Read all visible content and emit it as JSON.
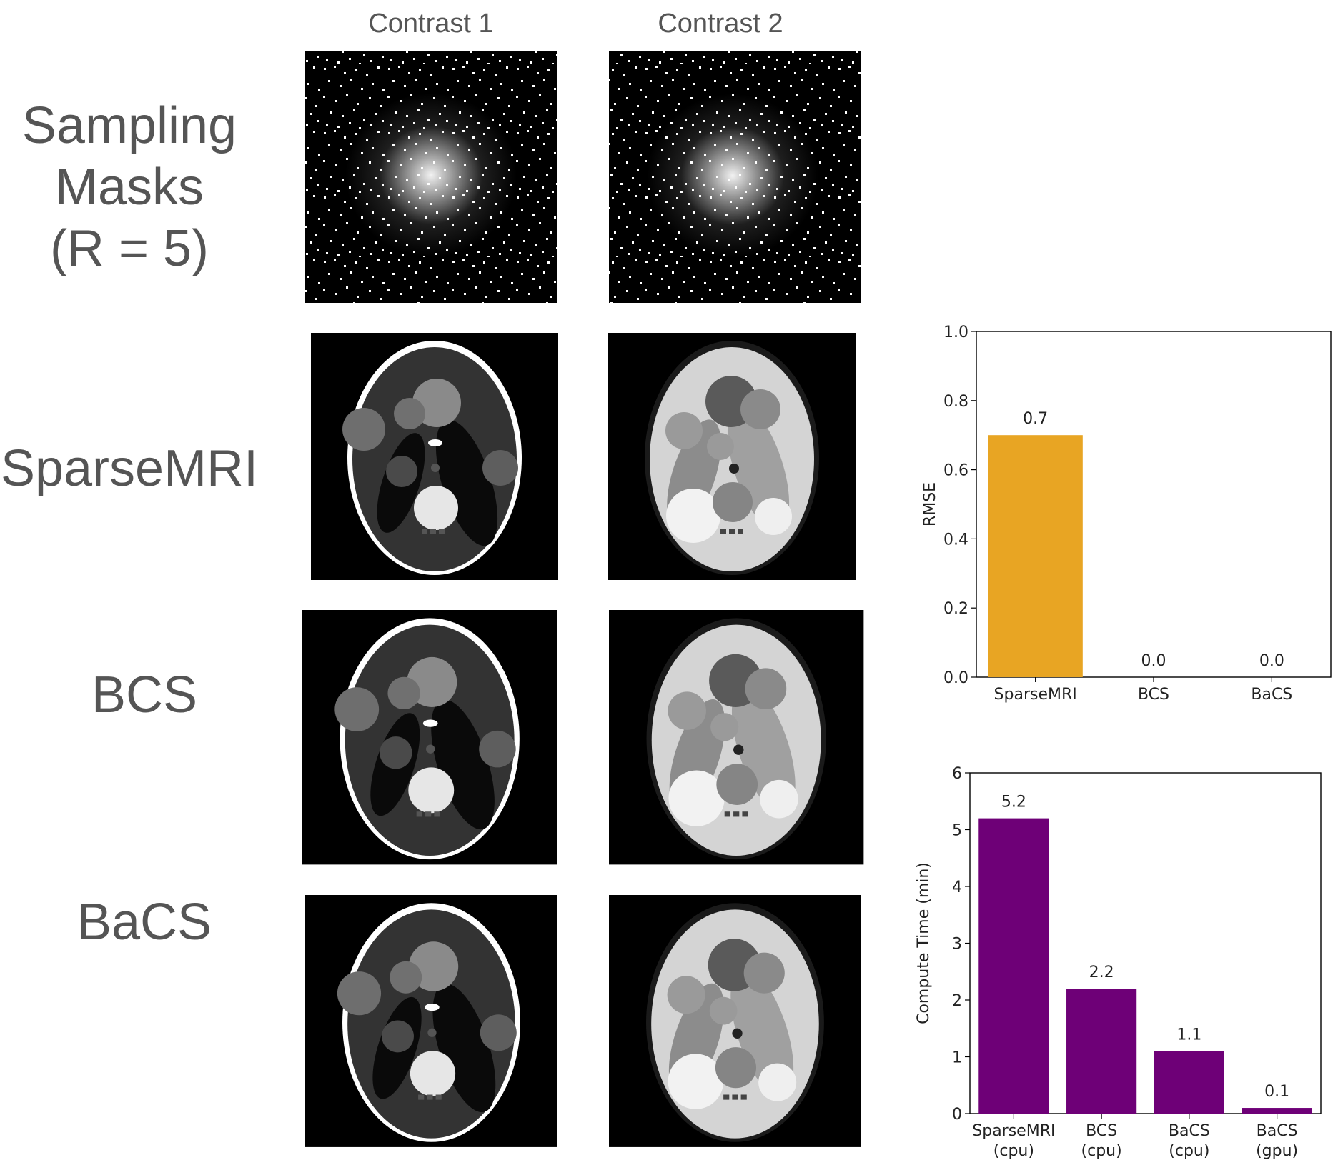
{
  "column_titles": [
    "Contrast 1",
    "Contrast 2"
  ],
  "row_labels": {
    "masks": [
      "Sampling",
      "Masks",
      "(R = 5)"
    ],
    "sparsemri": "SparseMRI",
    "bcs": "BCS",
    "bacs": "BaCS"
  },
  "chart_data": [
    {
      "type": "bar",
      "categories": [
        "SparseMRI",
        "BCS",
        "BaCS"
      ],
      "values": [
        0.7,
        0.0,
        0.0
      ],
      "data_labels": [
        "0.7",
        "0.0",
        "0.0"
      ],
      "xlabel": "",
      "ylabel": "RMSE",
      "ylim": [
        0,
        1.0
      ],
      "yticks": [
        "0.0",
        "0.2",
        "0.4",
        "0.6",
        "0.8",
        "1.0"
      ],
      "ytick_values": [
        0,
        0.2,
        0.4,
        0.6,
        0.8,
        1.0
      ],
      "color": "#E8A523",
      "grid": false
    },
    {
      "type": "bar",
      "categories": [
        [
          "SparseMRI",
          "(cpu)"
        ],
        [
          "BCS",
          "(cpu)"
        ],
        [
          "BaCS",
          "(cpu)"
        ],
        [
          "BaCS",
          "(gpu)"
        ]
      ],
      "values": [
        5.2,
        2.2,
        1.1,
        0.1
      ],
      "data_labels": [
        "5.2",
        "2.2",
        "1.1",
        "0.1"
      ],
      "xlabel": "",
      "ylabel": "Compute Time (min)",
      "ylim": [
        0,
        6
      ],
      "yticks": [
        "0",
        "1",
        "2",
        "3",
        "4",
        "5",
        "6"
      ],
      "ytick_values": [
        0,
        1,
        2,
        3,
        4,
        5,
        6
      ],
      "color": "#6E0077",
      "grid": false
    }
  ]
}
